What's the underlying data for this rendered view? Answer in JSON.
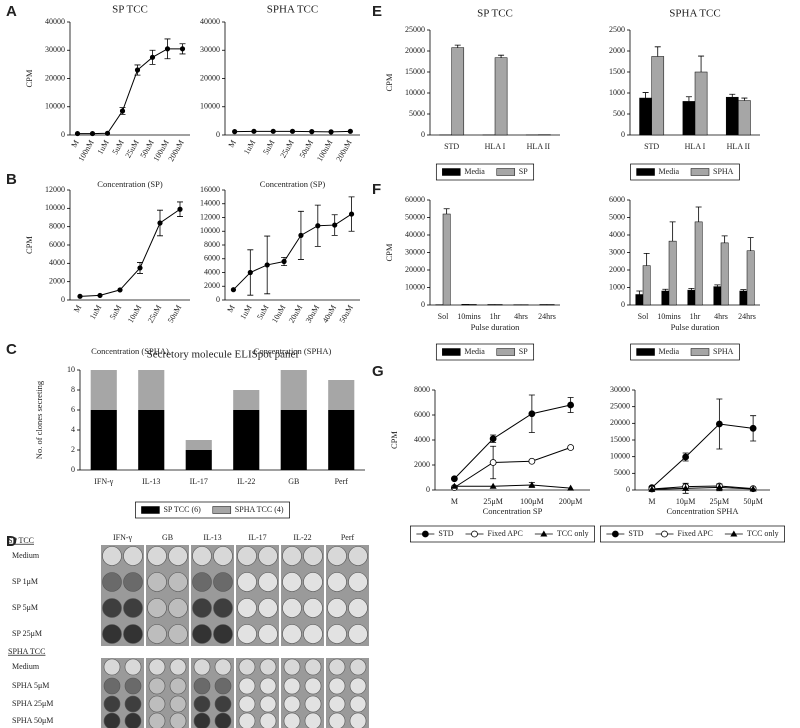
{
  "panel_labels": [
    "A",
    "B",
    "C",
    "D",
    "E",
    "F",
    "G"
  ],
  "chart_data": [
    {
      "type": "line",
      "title": "SP TCC",
      "x_label": "Concentration (SP)",
      "y_label": "CPM",
      "categories": [
        "M",
        "100nM",
        "1uM",
        "5uM",
        "25uM",
        "50uM",
        "100uM",
        "200uM"
      ],
      "values": [
        500,
        500,
        600,
        8500,
        23000,
        27500,
        30500,
        30500
      ],
      "errors": [
        0,
        0,
        0,
        1200,
        1800,
        2500,
        3500,
        1800
      ],
      "color": "#000000",
      "ylim": [
        0,
        40000
      ],
      "yticks": [
        0,
        10000,
        20000,
        30000,
        40000
      ]
    },
    {
      "type": "line",
      "title": "SPHA TCC",
      "x_label": "Concentration (SP)",
      "categories": [
        "M",
        "1uM",
        "5uM",
        "25uM",
        "50uM",
        "100uM",
        "200uM"
      ],
      "values": [
        1200,
        1300,
        1300,
        1300,
        1200,
        1100,
        1300
      ],
      "color": "#000000",
      "ylim": [
        0,
        40000
      ],
      "yticks": [
        0,
        10000,
        20000,
        30000,
        40000
      ]
    },
    {
      "type": "line",
      "x_label": "Concentration (SPHA)",
      "y_label": "CPM",
      "categories": [
        "M",
        "1uM",
        "5uM",
        "10uM",
        "25uM",
        "50uM"
      ],
      "values": [
        400,
        500,
        1100,
        3500,
        8400,
        9900
      ],
      "errors": [
        0,
        0,
        0,
        600,
        1400,
        800
      ],
      "color": "#000000",
      "ylim": [
        0,
        12000
      ],
      "yticks": [
        0,
        2000,
        4000,
        6000,
        8000,
        10000,
        12000
      ]
    },
    {
      "type": "line",
      "x_label": "Concentration (SPHA)",
      "categories": [
        "M",
        "1uM",
        "5uM",
        "10uM",
        "20uM",
        "30uM",
        "40uM",
        "50uM"
      ],
      "values": [
        1500,
        4000,
        5100,
        5600,
        9400,
        10800,
        10900,
        12500
      ],
      "errors": [
        0,
        3300,
        4200,
        600,
        3500,
        3000,
        1500,
        2500
      ],
      "color": "#000000",
      "ylim": [
        0,
        16000
      ],
      "yticks": [
        0,
        2000,
        4000,
        6000,
        8000,
        10000,
        12000,
        14000,
        16000
      ]
    },
    {
      "type": "bar",
      "stacked": true,
      "title": "Secretory molecule ELISpot panel",
      "y_label": "No. of clones secreting",
      "categories": [
        "IFN-γ",
        "IL-13",
        "IL-17",
        "IL-22",
        "GB",
        "Perf"
      ],
      "series": [
        {
          "name": "SP TCC (6)",
          "color": "#000000",
          "values": [
            6,
            6,
            2,
            6,
            6,
            6
          ]
        },
        {
          "name": "SPHA TCC (4)",
          "color": "#a6a6a6",
          "values": [
            4,
            4,
            1,
            2,
            4,
            3
          ]
        }
      ],
      "ylim": [
        0,
        10
      ],
      "yticks": [
        0,
        2,
        4,
        6,
        8,
        10
      ],
      "legend": "bottom"
    },
    {
      "type": "bar",
      "title": "SP TCC",
      "y_label": "CPM",
      "categories": [
        "STD",
        "HLA I",
        "HLA II"
      ],
      "series": [
        {
          "name": "Media",
          "color": "#000000",
          "values": [
            30,
            30,
            30
          ]
        },
        {
          "name": "SP",
          "color": "#a6a6a6",
          "values": [
            20800,
            18400,
            80
          ],
          "errors": [
            600,
            600,
            0
          ]
        }
      ],
      "ylim": [
        0,
        25000
      ],
      "yticks": [
        0,
        5000,
        10000,
        15000,
        20000,
        25000
      ],
      "legend": "bottom"
    },
    {
      "type": "bar",
      "title": "SPHA TCC",
      "categories": [
        "STD",
        "HLA I",
        "HLA II"
      ],
      "series": [
        {
          "name": "Media",
          "color": "#000000",
          "values": [
            880,
            800,
            900
          ],
          "errors": [
            130,
            110,
            70
          ]
        },
        {
          "name": "SPHA",
          "color": "#a6a6a6",
          "values": [
            1870,
            1500,
            820
          ],
          "errors": [
            230,
            380,
            60
          ]
        }
      ],
      "ylim": [
        0,
        2500
      ],
      "yticks": [
        0,
        500,
        1000,
        1500,
        2000,
        2500
      ],
      "legend": "bottom"
    },
    {
      "type": "bar",
      "x_label": "Pulse duration",
      "y_label": "CPM",
      "categories": [
        "Sol",
        "10mins",
        "1hr",
        "4hrs",
        "24hrs"
      ],
      "series": [
        {
          "name": "Media",
          "color": "#000000",
          "values": [
            200,
            400,
            300,
            200,
            300
          ]
        },
        {
          "name": "SP",
          "color": "#a6a6a6",
          "values": [
            52000,
            400,
            300,
            200,
            300
          ],
          "errors": [
            3000,
            0,
            0,
            0,
            0
          ]
        }
      ],
      "ylim": [
        0,
        60000
      ],
      "yticks": [
        0,
        10000,
        20000,
        30000,
        40000,
        50000,
        60000
      ],
      "legend": "bottom"
    },
    {
      "type": "bar",
      "x_label": "Pulse duration",
      "categories": [
        "Sol",
        "10mins",
        "1hr",
        "4hrs",
        "24hrs"
      ],
      "series": [
        {
          "name": "Media",
          "color": "#000000",
          "values": [
            600,
            800,
            850,
            1050,
            800
          ],
          "errors": [
            200,
            100,
            100,
            100,
            80
          ]
        },
        {
          "name": "SPHA",
          "color": "#a6a6a6",
          "values": [
            2250,
            3650,
            4750,
            3550,
            3100
          ],
          "errors": [
            700,
            1100,
            850,
            400,
            750
          ]
        }
      ],
      "ylim": [
        0,
        6000
      ],
      "yticks": [
        0,
        1000,
        2000,
        3000,
        4000,
        5000,
        6000
      ],
      "legend": "bottom"
    },
    {
      "type": "line",
      "x_label": "Concentration SP",
      "y_label": "CPM",
      "categories": [
        "M",
        "25μM",
        "100μM",
        "200μM"
      ],
      "series": [
        {
          "name": "STD",
          "color": "#000000",
          "marker": "circle",
          "values": [
            900,
            4100,
            6100,
            6800
          ],
          "errors": [
            0,
            300,
            1500,
            600
          ]
        },
        {
          "name": "Fixed APC",
          "color": "#000000",
          "marker": "open-circle",
          "values": [
            200,
            2200,
            2300,
            3400
          ],
          "errors": [
            0,
            1300,
            100,
            100
          ]
        },
        {
          "name": "TCC only",
          "color": "#000000",
          "marker": "triangle",
          "values": [
            300,
            300,
            400,
            150
          ],
          "errors": [
            0,
            0,
            200,
            0
          ]
        }
      ],
      "ylim": [
        0,
        8000
      ],
      "yticks": [
        0,
        2000,
        4000,
        6000,
        8000
      ],
      "legend": "bottom"
    },
    {
      "type": "line",
      "x_label": "Concentration SPHA",
      "categories": [
        "M",
        "10μM",
        "25μM",
        "50μM"
      ],
      "series": [
        {
          "name": "STD",
          "color": "#000000",
          "marker": "circle",
          "values": [
            700,
            9900,
            19800,
            18500
          ],
          "errors": [
            300,
            1200,
            7500,
            3800
          ]
        },
        {
          "name": "Fixed APC",
          "color": "#000000",
          "marker": "open-circle",
          "values": [
            300,
            1000,
            1200,
            400
          ],
          "errors": [
            0,
            400,
            600,
            0
          ]
        },
        {
          "name": "TCC only",
          "color": "#000000",
          "marker": "triangle",
          "values": [
            200,
            500,
            800,
            300
          ],
          "errors": [
            0,
            1500,
            1000,
            0
          ]
        }
      ],
      "ylim": [
        0,
        30000
      ],
      "yticks": [
        0,
        5000,
        10000,
        15000,
        20000,
        25000,
        30000
      ],
      "legend": "bottom"
    }
  ],
  "elispot": {
    "columns": [
      "IFN-γ",
      "GB",
      "IL-13",
      "IL-17",
      "IL-22",
      "Perf"
    ],
    "groups": [
      {
        "label": "SP TCC",
        "rows": [
          "Medium",
          "SP 1μM",
          "SP 5μM",
          "SP 25μM"
        ]
      },
      {
        "label": "SPHA TCC",
        "rows": [
          "Medium",
          "SPHA 5μM",
          "SPHA 25μM",
          "SPHA 50μM"
        ]
      }
    ]
  }
}
